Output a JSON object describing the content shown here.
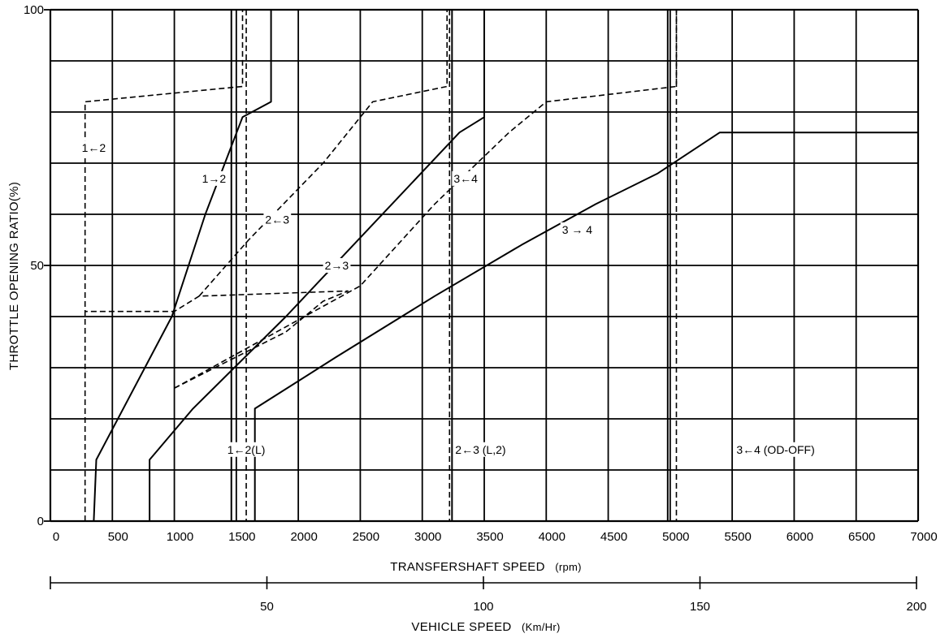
{
  "chart_data": {
    "type": "line",
    "ylabel": "THROTTLE OPENING RATIO(%)",
    "xlabel": "TRANSFERSHAFT SPEED",
    "xlabel_unit": "(rpm)",
    "x2label": "VEHICLE SPEED",
    "x2label_unit": "(Km/Hr)",
    "xlim": [
      0,
      7000
    ],
    "ylim": [
      0,
      100
    ],
    "x2lim": [
      0,
      200
    ],
    "x_ticks": [
      0,
      500,
      1000,
      1500,
      2000,
      2500,
      3000,
      3500,
      4000,
      4500,
      5000,
      5500,
      6000,
      6500,
      7000
    ],
    "y_ticks": [
      0,
      50,
      100
    ],
    "x2_ticks": [
      50,
      100,
      150,
      200
    ],
    "grid": true,
    "series": [
      {
        "name": "1→2",
        "style": "solid",
        "points": [
          [
            350,
            0
          ],
          [
            370,
            12
          ],
          [
            980,
            40
          ],
          [
            1250,
            60
          ],
          [
            1550,
            79
          ],
          [
            1780,
            82
          ],
          [
            1780,
            100
          ]
        ]
      },
      {
        "name": "1←2",
        "style": "dashed",
        "points": [
          [
            280,
            0
          ],
          [
            280,
            82
          ],
          [
            1550,
            85
          ],
          [
            1550,
            100
          ]
        ]
      },
      {
        "name": "2→3",
        "style": "solid",
        "points": [
          [
            800,
            0
          ],
          [
            800,
            12
          ],
          [
            1150,
            22
          ],
          [
            1900,
            40
          ],
          [
            2600,
            58
          ],
          [
            3300,
            76
          ],
          [
            3500,
            79
          ],
          [
            3500,
            100
          ]
        ]
      },
      {
        "name": "2←3",
        "style": "dashed",
        "points": [
          [
            1000,
            26
          ],
          [
            1900,
            37
          ],
          [
            2200,
            43
          ],
          [
            2400,
            45
          ],
          [
            1200,
            44
          ],
          [
            1000,
            41
          ],
          [
            280,
            41
          ]
        ]
      },
      {
        "name": "2←3",
        "style": "dashed",
        "points": [
          [
            1200,
            44
          ],
          [
            1600,
            55
          ],
          [
            2000,
            65
          ],
          [
            2200,
            70
          ],
          [
            2600,
            82
          ],
          [
            3200,
            85
          ],
          [
            3200,
            100
          ]
        ]
      },
      {
        "name": "3→4",
        "style": "solid",
        "points": [
          [
            1650,
            0
          ],
          [
            1650,
            22
          ],
          [
            2300,
            32
          ],
          [
            3100,
            44
          ],
          [
            3800,
            54
          ],
          [
            4400,
            62
          ],
          [
            4900,
            68
          ],
          [
            5400,
            76
          ],
          [
            7000,
            76
          ]
        ]
      },
      {
        "name": "3←4",
        "style": "dashed",
        "points": [
          [
            1000,
            26
          ],
          [
            2500,
            46
          ],
          [
            2800,
            54
          ],
          [
            3100,
            62
          ],
          [
            3400,
            69
          ],
          [
            3700,
            76
          ],
          [
            4000,
            82
          ],
          [
            5050,
            85
          ],
          [
            5050,
            100
          ]
        ]
      }
    ],
    "vertical_lines": [
      {
        "name": "1←2(L)",
        "style": "dashed",
        "x": 1580
      },
      {
        "name": "1←2(L)",
        "style": "solid",
        "x": 1460
      },
      {
        "name": "2←3 (L,2)",
        "style": "dashed",
        "x": 3220
      },
      {
        "name": "2←3 (L,2)",
        "style": "solid",
        "x": 3240
      },
      {
        "name": "3←4 (OD-OFF)",
        "style": "solid",
        "x": 4980
      },
      {
        "name": "3←4 (OD-OFF)",
        "style": "dashed",
        "x": 5050
      }
    ],
    "annotations": [
      {
        "text": "1←2",
        "x": 350,
        "y": 73
      },
      {
        "text": "1→2",
        "x": 1320,
        "y": 67
      },
      {
        "text": "2←3",
        "x": 1830,
        "y": 59
      },
      {
        "text": "2→3",
        "x": 2310,
        "y": 50
      },
      {
        "text": "3←4",
        "x": 3350,
        "y": 67
      },
      {
        "text": "3 → 4",
        "x": 4250,
        "y": 57
      },
      {
        "text": "1←2(L)",
        "x": 1580,
        "y": 14
      },
      {
        "text": "2←3 (L,2)",
        "x": 3470,
        "y": 14
      },
      {
        "text": "3←4 (OD-OFF)",
        "x": 5850,
        "y": 14
      }
    ]
  }
}
